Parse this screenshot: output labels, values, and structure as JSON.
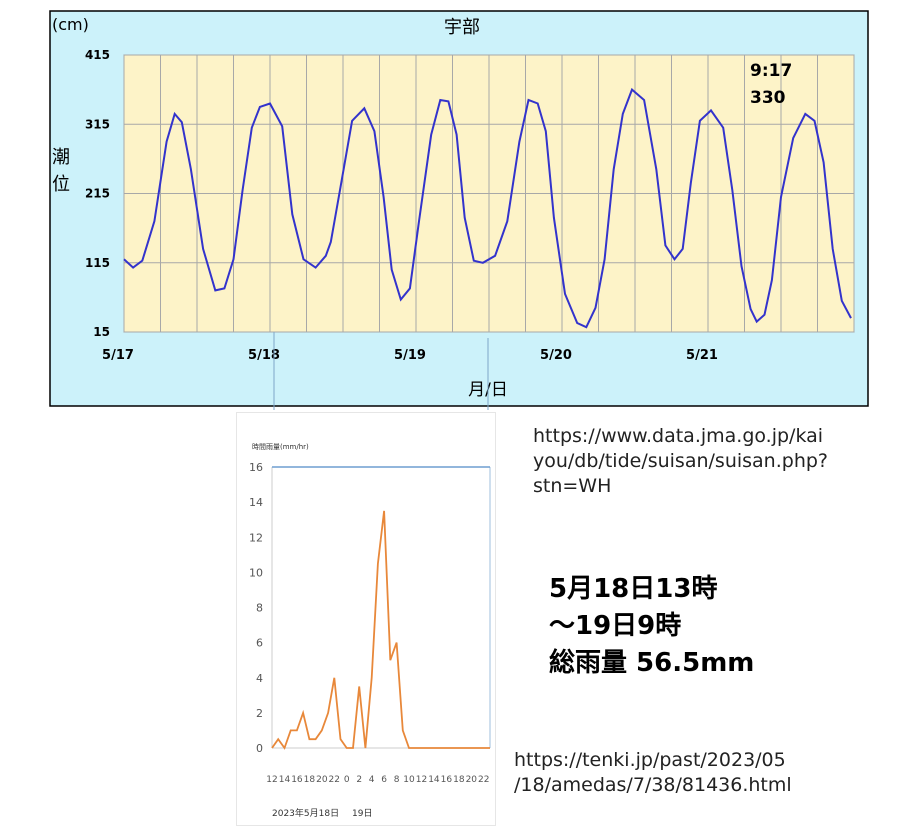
{
  "chart_data": [
    {
      "type": "line",
      "title": "宇部",
      "unit_label": "(cm)",
      "ylabel": "潮位",
      "xlabel": "月/日",
      "ylim": [
        15,
        415
      ],
      "yticks": [
        15,
        115,
        215,
        315,
        415
      ],
      "x_ticks": [
        "5/17",
        "5/18",
        "5/19",
        "5/20",
        "5/21"
      ],
      "xlim_days": [
        17,
        22
      ],
      "grid": true,
      "annotation": {
        "time": "9:17",
        "value": 330
      },
      "series": [
        {
          "color": "#3333cc",
          "x": [
            "5/17 00:00",
            "5/17 01:30",
            "5/17 03:00",
            "5/17 05:00",
            "5/17 07:00",
            "5/17 08:20",
            "5/17 09:30",
            "5/17 11:00",
            "5/17 13:00",
            "5/17 15:00",
            "5/17 16:30",
            "5/17 18:00",
            "5/17 19:30",
            "5/17 21:00",
            "5/17 22:20",
            "5/18 00:00",
            "5/18 02:00",
            "5/18 03:40",
            "5/18 05:30",
            "5/18 07:30",
            "5/18 09:10",
            "5/18 10:00",
            "5/18 11:30",
            "5/18 13:30",
            "5/18 15:30",
            "5/18 17:10",
            "5/18 18:40",
            "5/18 20:00",
            "5/18 21:30",
            "5/18 23:00",
            "5/19 00:30",
            "5/19 02:30",
            "5/19 04:00",
            "5/19 05:20",
            "5/19 06:40",
            "5/19 08:00",
            "5/19 09:30",
            "5/19 11:00",
            "5/19 13:00",
            "5/19 15:00",
            "5/19 17:00",
            "5/19 18:30",
            "5/19 20:00",
            "5/19 21:20",
            "5/19 22:40",
            "5/20 00:30",
            "5/20 02:30",
            "5/20 04:00",
            "5/20 05:30",
            "5/20 07:00",
            "5/20 08:30",
            "5/20 10:00",
            "5/20 11:30",
            "5/20 13:30",
            "5/20 15:30",
            "5/20 17:00",
            "5/20 18:30",
            "5/20 19:50",
            "5/20 21:10",
            "5/20 22:40",
            "5/21 00:30",
            "5/21 02:30",
            "5/21 04:00",
            "5/21 05:30",
            "5/21 07:00",
            "5/21 08:00",
            "5/21 09:17",
            "5/21 10:30",
            "5/21 12:00",
            "5/21 14:00",
            "5/21 16:00",
            "5/21 17:30",
            "5/21 19:00",
            "5/21 20:30",
            "5/21 22:00",
            "5/21 23:30"
          ],
          "y": [
            120,
            108,
            118,
            175,
            290,
            330,
            318,
            250,
            135,
            75,
            78,
            120,
            220,
            310,
            340,
            345,
            312,
            185,
            120,
            108,
            125,
            145,
            220,
            320,
            338,
            305,
            210,
            105,
            62,
            78,
            175,
            300,
            350,
            348,
            300,
            180,
            118,
            115,
            125,
            175,
            290,
            350,
            345,
            305,
            180,
            70,
            28,
            22,
            50,
            120,
            250,
            330,
            365,
            350,
            250,
            140,
            120,
            135,
            230,
            320,
            335,
            310,
            220,
            110,
            48,
            30,
            40,
            90,
            210,
            295,
            330,
            320,
            260,
            135,
            60,
            35
          ]
        }
      ]
    },
    {
      "type": "line",
      "ylabel": "時間雨量(mm/hr)",
      "ylim": [
        0,
        16
      ],
      "yticks": [
        0,
        2,
        4,
        6,
        8,
        10,
        12,
        14,
        16
      ],
      "x_ticks": [
        "12",
        "14",
        "16",
        "18",
        "20",
        "22",
        "0",
        "2",
        "4",
        "6",
        "8",
        "10",
        "12",
        "14",
        "16",
        "18",
        "20",
        "22"
      ],
      "date_labels": [
        "2023年5月18日",
        "19日"
      ],
      "series": [
        {
          "color": "#e8883a",
          "x": [
            12,
            13,
            14,
            15,
            16,
            17,
            18,
            19,
            20,
            21,
            22,
            23,
            24,
            25,
            26,
            27,
            28,
            29,
            30,
            31,
            32,
            33,
            34,
            35,
            36,
            37,
            38,
            39,
            40,
            41,
            42,
            43,
            44,
            45,
            46,
            47
          ],
          "y": [
            0,
            0.5,
            0,
            1,
            1,
            2,
            0.5,
            0.5,
            1,
            2,
            4,
            0.5,
            0,
            0,
            3.5,
            0,
            4,
            10.5,
            13.5,
            5,
            6,
            1,
            0,
            0,
            0,
            0,
            0,
            0,
            0,
            0,
            0,
            0,
            0,
            0,
            0,
            0
          ]
        }
      ]
    }
  ],
  "summary": {
    "line1": "5月18日13時",
    "line2": "～19日9時",
    "line3": "総雨量 56.5mm"
  },
  "sources": {
    "tide_url": "https://www.data.jma.go.jp/kai\nyou/db/tide/suisan/suisan.php?\nstn=WH",
    "rain_url": "https://tenki.jp/past/2023/05\n/18/amedas/7/38/81436.html"
  },
  "colors": {
    "tide_panel_bg": "#ccf2fa",
    "tide_plot_bg": "#fdf3c8",
    "tide_line": "#3333cc",
    "rain_line": "#e8883a"
  }
}
